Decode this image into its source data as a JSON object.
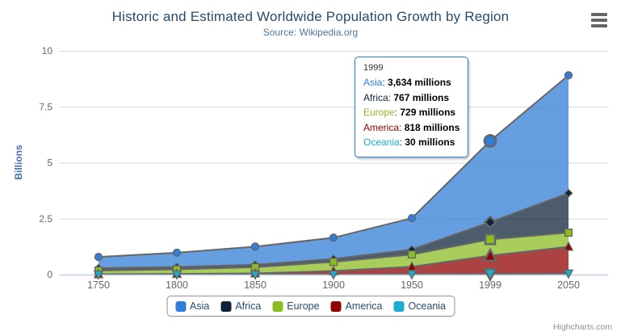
{
  "chart_data": {
    "type": "area",
    "stacking": "normal",
    "title": "Historic and Estimated Worldwide Population Growth by Region",
    "subtitle": "Source: Wikipedia.org",
    "categories": [
      "1750",
      "1800",
      "1850",
      "1900",
      "1950",
      "1999",
      "2050"
    ],
    "unit": "millions",
    "ylabel": "Billions",
    "ylim": [
      0,
      10
    ],
    "yticks": [
      0,
      2.5,
      5,
      7.5,
      10
    ],
    "ytick_labels": [
      "0",
      "2.5",
      "5",
      "7.5",
      "10"
    ],
    "grid": true,
    "legend_position": "bottom",
    "line_color": "#666666",
    "grid_color": "#d8d8d8",
    "axis_line_color": "#c0d0e0",
    "hovered_category": "1999",
    "series": [
      {
        "name": "Asia",
        "color": "#2f7ed8",
        "marker": "circle",
        "values": [
          502,
          635,
          809,
          947,
          1402,
          3634,
          5268
        ]
      },
      {
        "name": "Africa",
        "color": "#0d233a",
        "marker": "diamond",
        "values": [
          106,
          107,
          111,
          133,
          221,
          767,
          1766
        ]
      },
      {
        "name": "Europe",
        "color": "#8bbc21",
        "marker": "square",
        "values": [
          163,
          203,
          276,
          408,
          547,
          729,
          628
        ]
      },
      {
        "name": "America",
        "color": "#910000",
        "marker": "triangle",
        "values": [
          18,
          31,
          54,
          156,
          339,
          818,
          1201
        ]
      },
      {
        "name": "Oceania",
        "color": "#1aadce",
        "marker": "triangle-down",
        "values": [
          2,
          2,
          2,
          6,
          13,
          30,
          46
        ]
      }
    ]
  },
  "tooltip": {
    "header": "1999",
    "rows": [
      {
        "name": "Asia",
        "color": "#2f7ed8",
        "value": "3,634 millions"
      },
      {
        "name": "Africa",
        "color": "#0d233a",
        "value": "767 millions"
      },
      {
        "name": "Europe",
        "color": "#8bbc21",
        "value": "729 millions"
      },
      {
        "name": "America",
        "color": "#910000",
        "value": "818 millions"
      },
      {
        "name": "Oceania",
        "color": "#1aadce",
        "value": "30 millions"
      }
    ]
  },
  "legend": {
    "items": [
      "Asia",
      "Africa",
      "Europe",
      "America",
      "Oceania"
    ]
  },
  "credit": "Highcharts.com"
}
